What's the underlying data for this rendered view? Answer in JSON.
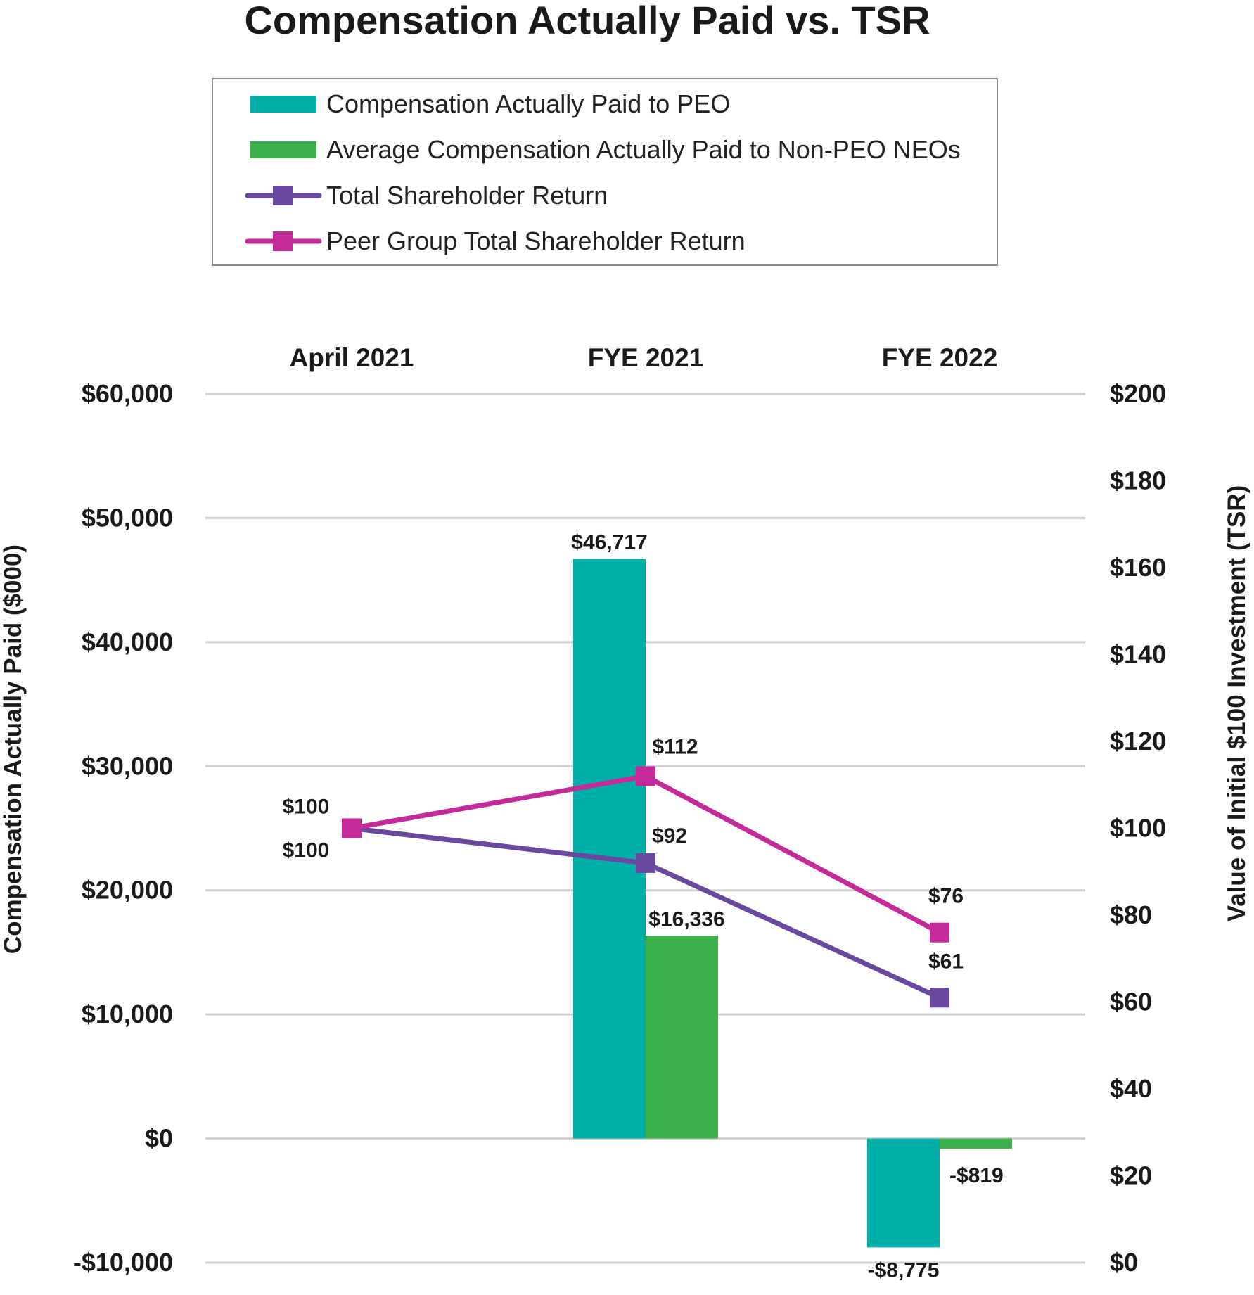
{
  "chart_data": {
    "type": "bar",
    "title": "Compensation Actually Paid vs. TSR",
    "categories": [
      "April 2021",
      "FYE 2021",
      "FYE 2022"
    ],
    "ylabel": "Compensation Actually Paid ($000)",
    "y2label": "Value of Initial $100 Investment (TSR)",
    "ylim": [
      -10000,
      60000
    ],
    "y2lim": [
      0,
      200
    ],
    "yticks": [
      -10000,
      0,
      10000,
      20000,
      30000,
      40000,
      50000,
      60000
    ],
    "ytick_labels": [
      "-$10,000",
      "$0",
      "$10,000",
      "$20,000",
      "$30,000",
      "$40,000",
      "$50,000",
      "$60,000"
    ],
    "y2ticks": [
      0,
      20,
      40,
      60,
      80,
      100,
      120,
      140,
      160,
      180,
      200
    ],
    "y2tick_labels": [
      "$0",
      "$20",
      "$40",
      "$60",
      "$80",
      "$100",
      "$120",
      "$140",
      "$160",
      "$180",
      "$200"
    ],
    "grid": true,
    "legend_position": "top",
    "series": [
      {
        "name": "Compensation Actually Paid to PEO",
        "kind": "bar",
        "axis": "left",
        "color": "#00b0a8",
        "values": [
          null,
          46717,
          -8775
        ],
        "labels": [
          "",
          "$46,717",
          "-$8,775"
        ]
      },
      {
        "name": "Average Compensation Actually Paid to Non-PEO NEOs",
        "kind": "bar",
        "axis": "left",
        "color": "#3cb04b",
        "values": [
          null,
          16336,
          -819
        ],
        "labels": [
          "",
          "$16,336",
          "-$819"
        ]
      },
      {
        "name": "Total Shareholder Return",
        "kind": "line",
        "axis": "right",
        "color": "#6b48a0",
        "values": [
          100,
          92,
          61
        ],
        "labels": [
          "$100",
          "$92",
          "$61"
        ]
      },
      {
        "name": "Peer Group Total Shareholder Return",
        "kind": "line",
        "axis": "right",
        "color": "#c42a9a",
        "values": [
          100,
          112,
          76
        ],
        "labels": [
          "$100",
          "$112",
          "$76"
        ]
      }
    ]
  }
}
